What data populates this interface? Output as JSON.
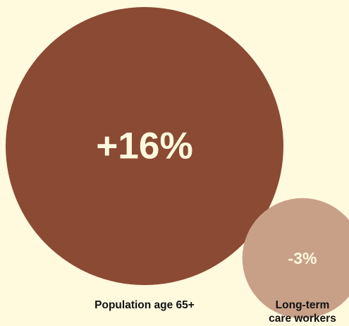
{
  "chart_data": {
    "type": "bubble",
    "title": "",
    "series": [
      {
        "category": "Population age 65+",
        "category_lines": [
          "Population age 65+"
        ],
        "value": 16,
        "value_label": "+16%",
        "color": "#8b4a33",
        "label_color": "#fff9de"
      },
      {
        "category": "Long-term care workers",
        "category_lines": [
          "Long-term",
          "care workers"
        ],
        "value": -3,
        "value_label": "-3%",
        "color": "#c8a088",
        "label_color": "#fff9de"
      }
    ],
    "background_color": "#fff9de",
    "legend": "none",
    "grid": false
  }
}
